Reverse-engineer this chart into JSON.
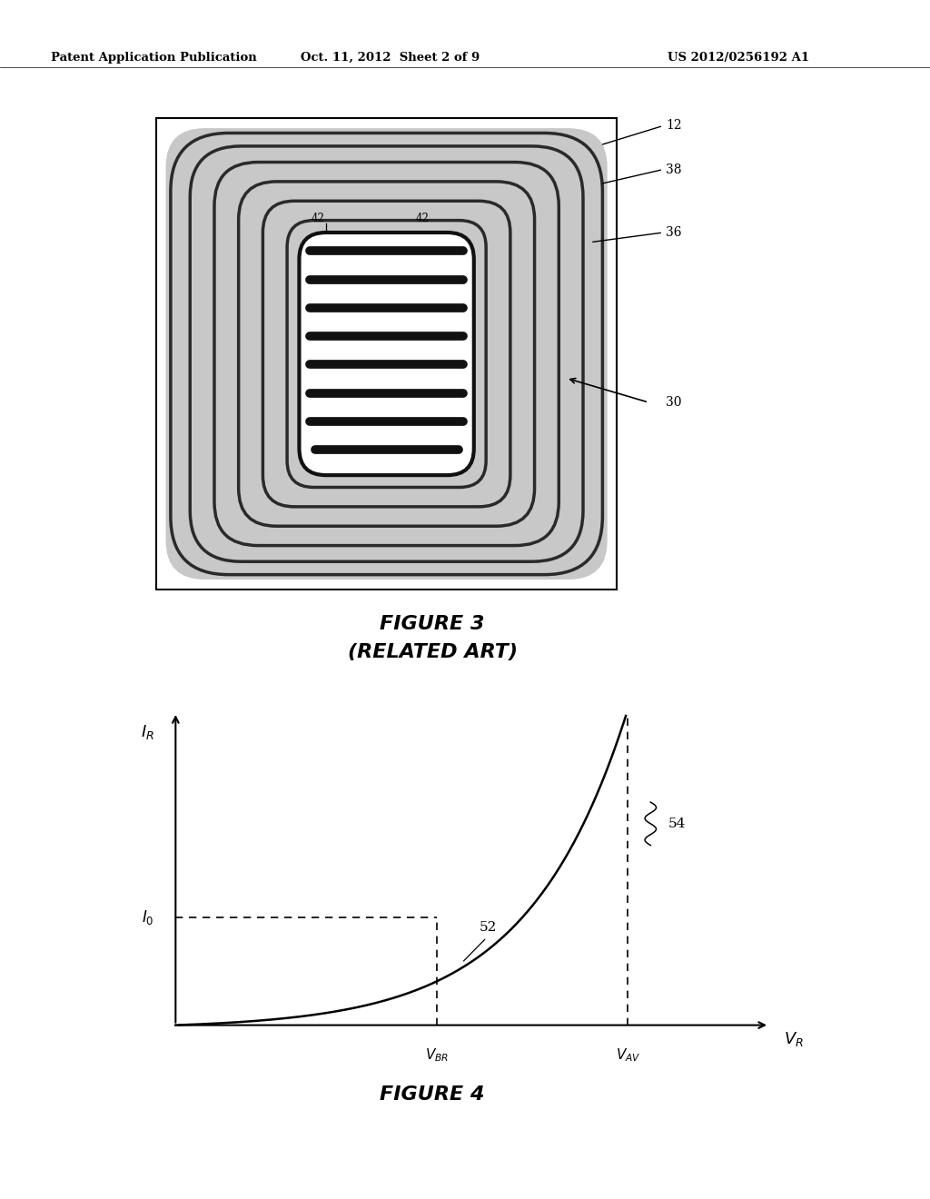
{
  "page_header_left": "Patent Application Publication",
  "page_header_center": "Oct. 11, 2012  Sheet 2 of 9",
  "page_header_right": "US 2012/0256192 A1",
  "fig3_title": "FIGURE 3",
  "fig3_subtitle": "(RELATED ART)",
  "fig4_title": "FIGURE 4",
  "bg_color": "#ffffff",
  "ring_grey": "#c0c0c0",
  "ring_dark": "#1a1a1a",
  "stripe_color": "#111111",
  "cell_fill": "#e8e8e8"
}
